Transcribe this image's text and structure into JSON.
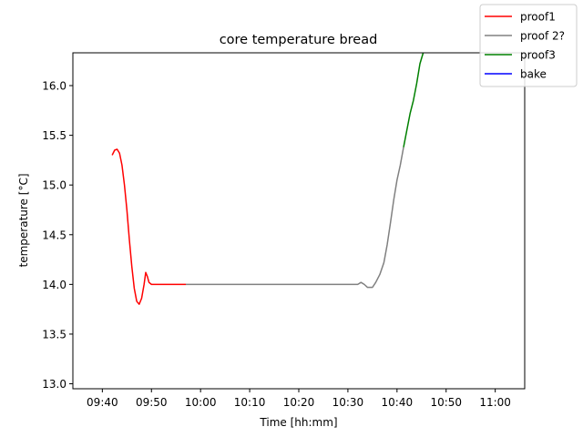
{
  "chart_data": {
    "type": "line",
    "title": "core temperature bread",
    "xlabel": "Time [hh:mm]",
    "ylabel": "temperature [°C]",
    "xlim": [
      "09:34",
      "11:06"
    ],
    "ylim": [
      12.95,
      16.33
    ],
    "x_ticks": [
      "09:40",
      "09:50",
      "10:00",
      "10:10",
      "10:20",
      "10:30",
      "10:40",
      "10:50",
      "11:00"
    ],
    "y_ticks": [
      "13.0",
      "13.5",
      "14.0",
      "14.5",
      "15.0",
      "15.5",
      "16.0"
    ],
    "grid": false,
    "legend_position": "top-right",
    "series": [
      {
        "name": "proof1",
        "color": "#ff0000",
        "points": [
          [
            "09:42",
            15.3
          ],
          [
            "09:42:30",
            15.35
          ],
          [
            "09:43",
            15.36
          ],
          [
            "09:43:30",
            15.32
          ],
          [
            "09:44",
            15.2
          ],
          [
            "09:44:30",
            15.0
          ],
          [
            "09:45",
            14.75
          ],
          [
            "09:45:30",
            14.45
          ],
          [
            "09:46",
            14.18
          ],
          [
            "09:46:30",
            13.96
          ],
          [
            "09:47",
            13.83
          ],
          [
            "09:47:30",
            13.8
          ],
          [
            "09:48",
            13.86
          ],
          [
            "09:48:30",
            14.0
          ],
          [
            "09:48:50",
            14.12
          ],
          [
            "09:49:10",
            14.08
          ],
          [
            "09:49:30",
            14.02
          ],
          [
            "09:50",
            14.0
          ],
          [
            "09:55",
            14.0
          ],
          [
            "09:57",
            14.0
          ]
        ]
      },
      {
        "name": "proof 2?",
        "color": "#808080",
        "points": [
          [
            "09:57",
            14.0
          ],
          [
            "10:05",
            14.0
          ],
          [
            "10:15",
            14.0
          ],
          [
            "10:25",
            14.0
          ],
          [
            "10:32",
            14.0
          ],
          [
            "10:32:40",
            14.02
          ],
          [
            "10:33:20",
            14.0
          ],
          [
            "10:34",
            13.97
          ],
          [
            "10:35",
            13.97
          ],
          [
            "10:35:40",
            14.02
          ],
          [
            "10:36:30",
            14.1
          ],
          [
            "10:37:20",
            14.22
          ],
          [
            "10:38",
            14.4
          ],
          [
            "10:38:40",
            14.62
          ],
          [
            "10:39:20",
            14.85
          ],
          [
            "10:40",
            15.05
          ],
          [
            "10:40:40",
            15.2
          ],
          [
            "10:41:20",
            15.38
          ]
        ]
      },
      {
        "name": "proof3",
        "color": "#008000",
        "points": [
          [
            "10:41:20",
            15.38
          ],
          [
            "10:42",
            15.55
          ],
          [
            "10:42:40",
            15.72
          ],
          [
            "10:43:20",
            15.85
          ],
          [
            "10:44",
            16.02
          ],
          [
            "10:44:40",
            16.22
          ],
          [
            "10:45:20",
            16.33
          ]
        ]
      },
      {
        "name": "bake",
        "color": "#0000ff",
        "points": []
      }
    ]
  }
}
